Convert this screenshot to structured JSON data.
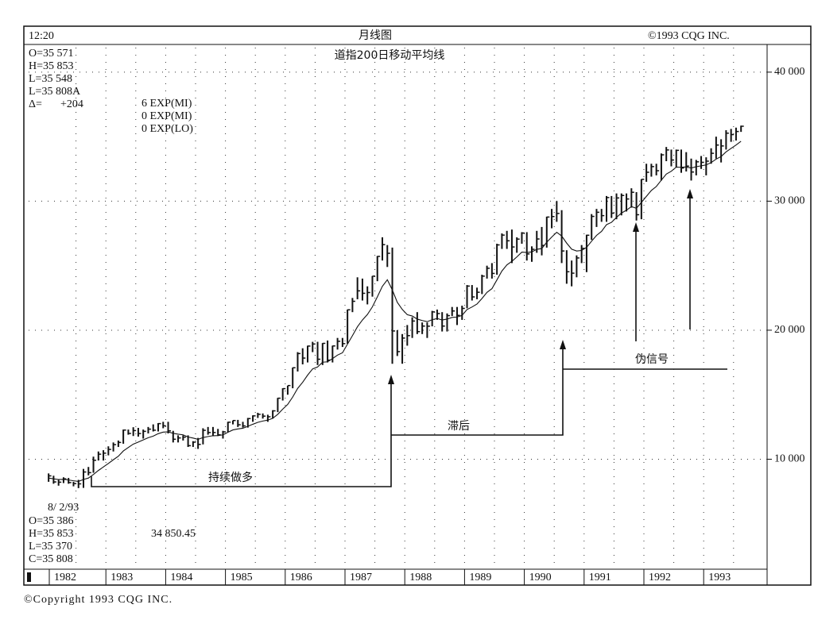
{
  "header": {
    "time": "12:20",
    "title": "月线图",
    "copyright": "©1993 CQG INC."
  },
  "readout_top": {
    "lines": [
      "O=35 571",
      "H=35 853",
      "L=35 548",
      "L=35 808A"
    ],
    "delta_label": "Δ=",
    "delta": "+204"
  },
  "studies": [
    "6 EXP(MI)",
    "0 EXP(MI)",
    "0 EXP(LO)"
  ],
  "readout_bottom": {
    "date": "8/ 2/93",
    "lines": [
      "O=35 386",
      "H=35 853",
      "L=35 370",
      "C=35 808"
    ],
    "value": "34 850.45"
  },
  "footer": "©Copyright 1993 CQG INC.",
  "chart_data": {
    "type": "ohlc",
    "title": "道指200日移动平均线",
    "categories": [
      "1982",
      "1983",
      "1984",
      "1985",
      "1986",
      "1987",
      "1988",
      "1989",
      "1990",
      "1991",
      "1992",
      "1993"
    ],
    "high": [
      8900,
      8720,
      8400,
      8600,
      8550,
      8250,
      8400,
      9250,
      9400,
      10200,
      10600,
      10700,
      11000,
      11300,
      11450,
      12300,
      12300,
      12480,
      12430,
      12300,
      12500,
      12700,
      12800,
      12900,
      12900,
      12200,
      11850,
      11850,
      11850,
      11400,
      11650,
      12400,
      12500,
      12500,
      12350,
      12200,
      12900,
      13000,
      13050,
      12900,
      13200,
      13400,
      13600,
      13550,
      13450,
      13800,
      14750,
      15500,
      15700,
      17100,
      18300,
      18600,
      18800,
      19100,
      19100,
      19000,
      19200,
      18800,
      19400,
      19400,
      21600,
      22500,
      24100,
      24000,
      23400,
      24200,
      25750,
      27200,
      26600,
      26400,
      20000,
      19700,
      20400,
      21000,
      21400,
      20600,
      20600,
      21500,
      21600,
      21400,
      21300,
      21800,
      21800,
      21900,
      23500,
      23500,
      23300,
      24300,
      25000,
      25200,
      26700,
      27500,
      27700,
      27800,
      27200,
      27600,
      27600,
      26500,
      27700,
      28000,
      28800,
      29400,
      30000,
      29300,
      26200,
      25400,
      25800,
      26600,
      27400,
      29000,
      29400,
      29400,
      30400,
      30400,
      30600,
      30600,
      30600,
      31000,
      30700,
      31700,
      32900,
      32900,
      32900,
      33700,
      34200,
      34000,
      34000,
      34000,
      33800,
      33300,
      33200,
      33500,
      33400,
      34100,
      35000,
      34800,
      35500,
      35600,
      35700,
      35853
    ],
    "low": [
      8250,
      8100,
      7950,
      8150,
      8100,
      7900,
      7760,
      7780,
      8750,
      8950,
      9900,
      9900,
      10300,
      10600,
      10950,
      11200,
      11900,
      11800,
      11750,
      11600,
      12000,
      12150,
      12150,
      12400,
      12000,
      11300,
      11300,
      11450,
      10950,
      10950,
      10800,
      11150,
      11900,
      11800,
      11800,
      11600,
      12100,
      12700,
      12500,
      12450,
      12450,
      12900,
      13200,
      13150,
      12900,
      13150,
      13650,
      14550,
      15000,
      15500,
      16800,
      17350,
      17500,
      18300,
      17300,
      17300,
      17500,
      17500,
      18500,
      18700,
      18950,
      21400,
      22400,
      22300,
      22000,
      22600,
      23800,
      25400,
      24900,
      17400,
      18000,
      17400,
      18800,
      19400,
      19700,
      19700,
      19400,
      20300,
      20800,
      19900,
      19900,
      21100,
      20400,
      20800,
      21700,
      22300,
      22400,
      22800,
      24000,
      24000,
      24300,
      26300,
      26300,
      25200,
      26000,
      26700,
      25400,
      25300,
      26000,
      25800,
      26400,
      27900,
      28400,
      25200,
      23600,
      23400,
      24100,
      25200,
      24500,
      27000,
      28000,
      28400,
      28400,
      28700,
      28600,
      28900,
      29200,
      29500,
      28500,
      28600,
      31500,
      31900,
      32000,
      31600,
      33100,
      32700,
      32600,
      32200,
      32300,
      31600,
      32000,
      32500,
      32000,
      32900,
      33300,
      33000,
      34000,
      34600,
      34700,
      35370
    ],
    "close": [
      8710,
      8240,
      8220,
      8480,
      8190,
      8110,
      8090,
      9010,
      8960,
      9920,
      10390,
      10470,
      10760,
      11130,
      11300,
      12260,
      12000,
      12220,
      11990,
      12160,
      12330,
      12250,
      12760,
      12590,
      12200,
      11550,
      11650,
      11710,
      11050,
      11320,
      11150,
      12240,
      12070,
      12070,
      11890,
      12120,
      12870,
      13000,
      12670,
      12580,
      13150,
      13360,
      13480,
      13340,
      13290,
      13750,
      14730,
      15470,
      15710,
      17090,
      18190,
      17840,
      18770,
      18930,
      17750,
      18980,
      17680,
      18780,
      19140,
      18960,
      21580,
      22240,
      23050,
      22860,
      22920,
      24190,
      25720,
      26630,
      25960,
      19940,
      18340,
      19390,
      19580,
      20710,
      19890,
      20320,
      20310,
      21420,
      21290,
      20320,
      21130,
      21490,
      21150,
      21690,
      23420,
      22580,
      22940,
      24190,
      24800,
      24400,
      26610,
      27370,
      26930,
      26450,
      27060,
      27530,
      25910,
      26270,
      27070,
      26570,
      28770,
      28810,
      29050,
      26140,
      24530,
      24420,
      25600,
      26340,
      27360,
      28820,
      29140,
      28880,
      30280,
      29070,
      30250,
      30440,
      30170,
      30690,
      28950,
      31690,
      32240,
      32680,
      32360,
      33590,
      33970,
      33190,
      33940,
      32570,
      32720,
      32260,
      33050,
      33010,
      33100,
      33710,
      34350,
      34280,
      35270,
      35160,
      35400,
      35808
    ],
    "average": [
      8540,
      8480,
      8430,
      8440,
      8390,
      8330,
      8280,
      8430,
      8540,
      8820,
      9130,
      9400,
      9670,
      9960,
      10230,
      10640,
      10910,
      11170,
      11330,
      11500,
      11670,
      11790,
      11980,
      12100,
      12120,
      12010,
      11940,
      11890,
      11720,
      11640,
      11540,
      11680,
      11760,
      11820,
      11830,
      11890,
      12090,
      12270,
      12350,
      12400,
      12550,
      12710,
      12860,
      12960,
      13030,
      13170,
      13480,
      13880,
      14250,
      14820,
      15490,
      15960,
      16520,
      17000,
      17150,
      17520,
      17550,
      17800,
      18070,
      18250,
      18920,
      19580,
      20270,
      20790,
      21220,
      21810,
      22590,
      23400,
      23910,
      23120,
      22160,
      21610,
      21200,
      21100,
      20860,
      20750,
      20660,
      20810,
      20910,
      20790,
      20860,
      20990,
      21020,
      21150,
      21600,
      21800,
      22030,
      22460,
      22930,
      23220,
      23900,
      24590,
      25060,
      25340,
      25680,
      26050,
      26020,
      26070,
      26270,
      26330,
      26820,
      27220,
      27590,
      27300,
      26750,
      26280,
      26140,
      26180,
      26420,
      26900,
      27350,
      27660,
      28180,
      28360,
      28740,
      29080,
      29300,
      29580,
      29450,
      29900,
      30370,
      30830,
      31140,
      31630,
      32100,
      32320,
      32640,
      32630,
      32650,
      32570,
      32670,
      32740,
      32810,
      32990,
      33260,
      33460,
      33820,
      34090,
      34350,
      34640
    ],
    "color": "#111111",
    "ylim": [
      1600,
      41900
    ],
    "yticks": [
      {
        "value": 10000,
        "label": "10 000"
      },
      {
        "value": 20000,
        "label": "20 000"
      },
      {
        "value": 30000,
        "label": "30 000"
      },
      {
        "value": 40000,
        "label": "40 000"
      }
    ],
    "grid": true,
    "annotations": [
      "持续做多",
      "滞后",
      "伪信号"
    ]
  }
}
